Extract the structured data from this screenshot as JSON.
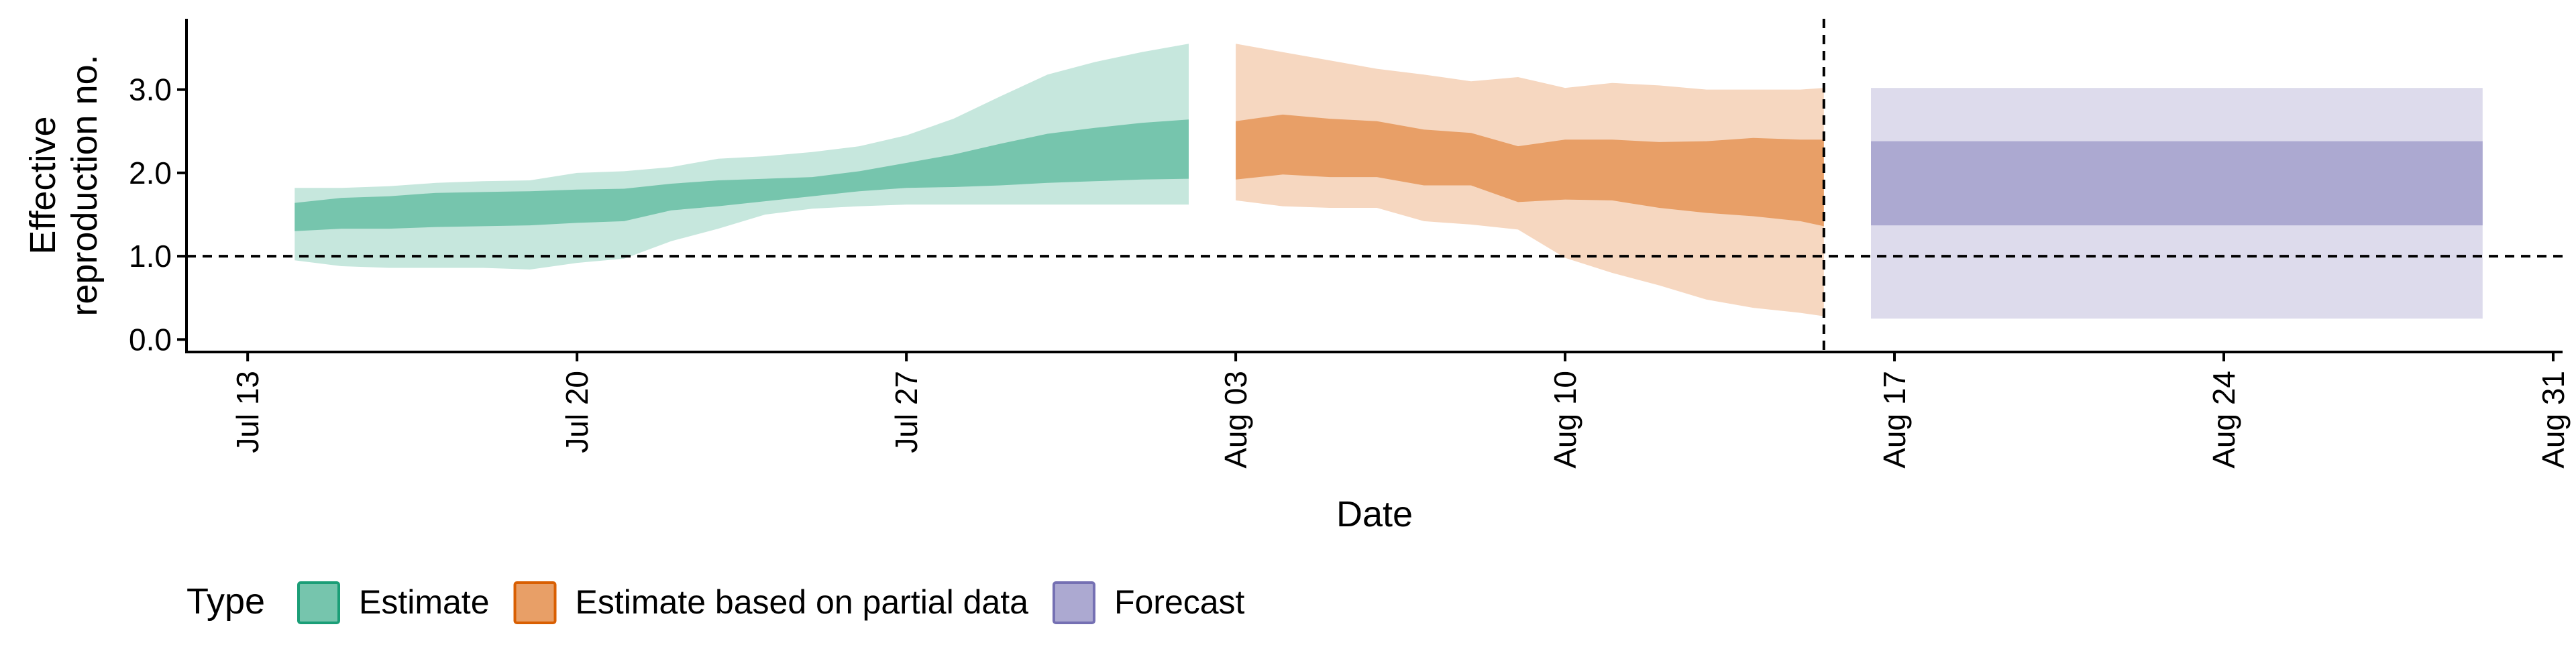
{
  "chart_data": {
    "type": "area",
    "title": "",
    "xlabel": "Date",
    "ylabel_lines": [
      "Effective",
      "reproduction no."
    ],
    "ylim": [
      -0.15,
      3.85
    ],
    "y_ticks": [
      {
        "value": 0.0,
        "label": "0.0"
      },
      {
        "value": 1.0,
        "label": "1.0"
      },
      {
        "value": 2.0,
        "label": "2.0"
      },
      {
        "value": 3.0,
        "label": "3.0"
      }
    ],
    "x_ticks": [
      {
        "day": 0,
        "label": "Jul 13"
      },
      {
        "day": 7,
        "label": "Jul 20"
      },
      {
        "day": 14,
        "label": "Jul 27"
      },
      {
        "day": 21,
        "label": "Aug 03"
      },
      {
        "day": 28,
        "label": "Aug 10"
      },
      {
        "day": 35,
        "label": "Aug 17"
      },
      {
        "day": 42,
        "label": "Aug 24"
      },
      {
        "day": 49,
        "label": "Aug 31"
      }
    ],
    "xlim_days": [
      -1.3,
      49.2
    ],
    "reference_hline": 1.0,
    "reference_vline_day": 33.5,
    "grid": false,
    "legend_position": "bottom-left",
    "legend_title": "Type",
    "series": [
      {
        "name": "Estimate",
        "color": "#1B9E77",
        "day": [
          1,
          2,
          3,
          4,
          5,
          6,
          7,
          8,
          9,
          10,
          11,
          12,
          13,
          14,
          15,
          16,
          17,
          18,
          19,
          20
        ],
        "lower90": [
          0.95,
          0.88,
          0.86,
          0.86,
          0.86,
          0.84,
          0.92,
          0.97,
          1.18,
          1.33,
          1.5,
          1.57,
          1.6,
          1.62,
          1.62,
          1.62,
          1.62,
          1.62,
          1.62,
          1.62
        ],
        "lower50": [
          1.3,
          1.33,
          1.33,
          1.35,
          1.36,
          1.37,
          1.4,
          1.42,
          1.55,
          1.6,
          1.66,
          1.72,
          1.78,
          1.82,
          1.83,
          1.85,
          1.88,
          1.9,
          1.92,
          1.93
        ],
        "upper50": [
          1.64,
          1.7,
          1.72,
          1.76,
          1.77,
          1.78,
          1.8,
          1.81,
          1.87,
          1.91,
          1.93,
          1.95,
          2.02,
          2.12,
          2.22,
          2.35,
          2.47,
          2.54,
          2.6,
          2.64
        ],
        "upper90": [
          1.82,
          1.82,
          1.84,
          1.88,
          1.9,
          1.91,
          2.0,
          2.02,
          2.07,
          2.17,
          2.2,
          2.25,
          2.32,
          2.45,
          2.65,
          2.92,
          3.18,
          3.33,
          3.45,
          3.55
        ]
      },
      {
        "name": "Estimate based on partial data",
        "color": "#D95F02",
        "day": [
          21,
          22,
          23,
          24,
          25,
          26,
          27,
          28,
          29,
          30,
          31,
          32,
          33,
          33.5
        ],
        "lower90": [
          1.67,
          1.6,
          1.58,
          1.58,
          1.42,
          1.38,
          1.32,
          0.98,
          0.8,
          0.65,
          0.48,
          0.38,
          0.32,
          0.28
        ],
        "lower50": [
          1.92,
          1.98,
          1.95,
          1.95,
          1.85,
          1.85,
          1.65,
          1.68,
          1.67,
          1.58,
          1.52,
          1.48,
          1.42,
          1.36
        ],
        "upper50": [
          2.62,
          2.7,
          2.65,
          2.62,
          2.52,
          2.48,
          2.32,
          2.4,
          2.4,
          2.37,
          2.38,
          2.42,
          2.4,
          2.4
        ],
        "upper90": [
          3.55,
          3.45,
          3.35,
          3.25,
          3.18,
          3.1,
          3.15,
          3.02,
          3.08,
          3.05,
          3.0,
          3.0,
          3.0,
          3.02
        ]
      },
      {
        "name": "Forecast",
        "color": "#7570B3",
        "day": [
          34.5,
          47.5
        ],
        "lower90": [
          0.25,
          0.25
        ],
        "lower50": [
          1.37,
          1.37
        ],
        "upper50": [
          2.38,
          2.38
        ],
        "upper90": [
          3.02,
          3.02
        ]
      }
    ]
  }
}
